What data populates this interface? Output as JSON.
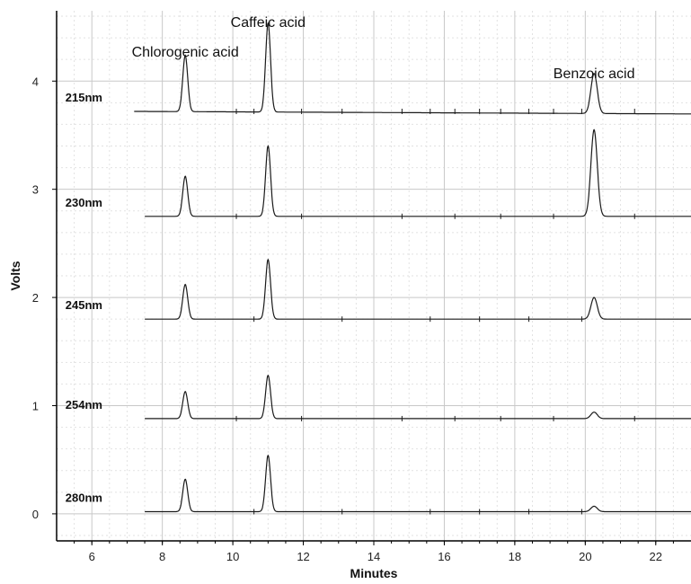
{
  "chart_data": {
    "type": "line",
    "xlabel": "Minutes",
    "ylabel": "Volts",
    "xlim": [
      5,
      23
    ],
    "ylim": [
      -0.25,
      4.65
    ],
    "x_ticks": [
      6,
      8,
      10,
      12,
      14,
      16,
      18,
      20,
      22
    ],
    "y_ticks": [
      0,
      1,
      2,
      3,
      4
    ],
    "grid": true,
    "series": [
      {
        "name": "215nm",
        "baseline": 3.72,
        "peaks": [
          {
            "x": 8.65,
            "h": 0.52,
            "w": 0.07
          },
          {
            "x": 11.0,
            "h": 0.82,
            "w": 0.07
          },
          {
            "x": 20.25,
            "h": 0.37,
            "w": 0.09
          }
        ]
      },
      {
        "name": "230nm",
        "baseline": 2.75,
        "peaks": [
          {
            "x": 8.65,
            "h": 0.37,
            "w": 0.07
          },
          {
            "x": 11.0,
            "h": 0.65,
            "w": 0.07
          },
          {
            "x": 20.25,
            "h": 0.8,
            "w": 0.09
          }
        ]
      },
      {
        "name": "245nm",
        "baseline": 1.8,
        "peaks": [
          {
            "x": 8.65,
            "h": 0.32,
            "w": 0.07
          },
          {
            "x": 11.0,
            "h": 0.55,
            "w": 0.07
          },
          {
            "x": 20.25,
            "h": 0.2,
            "w": 0.09
          }
        ]
      },
      {
        "name": "254nm",
        "baseline": 0.88,
        "peaks": [
          {
            "x": 8.65,
            "h": 0.25,
            "w": 0.07
          },
          {
            "x": 11.0,
            "h": 0.4,
            "w": 0.07
          },
          {
            "x": 20.25,
            "h": 0.06,
            "w": 0.09
          }
        ]
      },
      {
        "name": "280nm",
        "baseline": 0.02,
        "peaks": [
          {
            "x": 8.65,
            "h": 0.3,
            "w": 0.07
          },
          {
            "x": 11.0,
            "h": 0.52,
            "w": 0.07
          },
          {
            "x": 20.25,
            "h": 0.05,
            "w": 0.09
          }
        ]
      }
    ],
    "annotations": [
      {
        "text": "Chlorogenic acid",
        "x": 8.65
      },
      {
        "text": "Caffeic acid",
        "x": 11.0
      },
      {
        "text": "Benzoic acid",
        "x": 20.25
      }
    ],
    "colors": {
      "line": "#1a1a1a",
      "grid": "#c8c8c8",
      "minor_grid": "#e2e2e2"
    }
  }
}
